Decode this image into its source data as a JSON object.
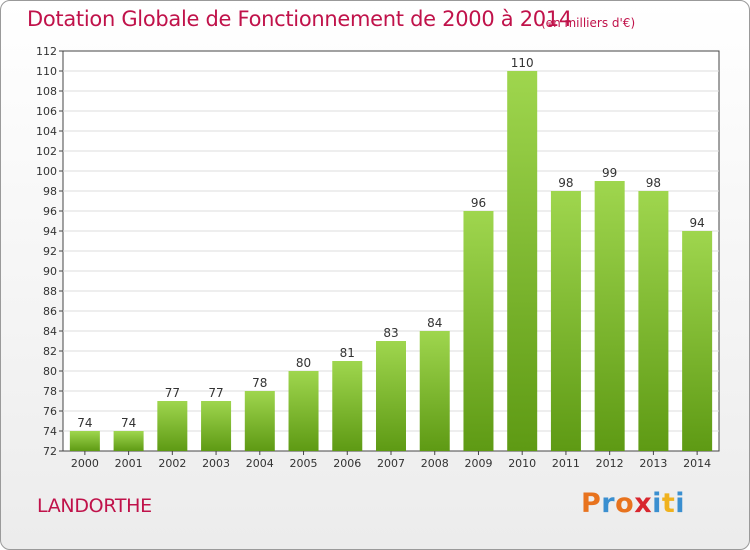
{
  "header": {
    "title": "Dotation Globale de Fonctionnement de 2000 à 2014",
    "unit": "(en milliers d'€)"
  },
  "footer": {
    "commune": "LANDORTHE",
    "logo_letters": [
      "P",
      "r",
      "o",
      "x",
      "i",
      "t",
      "i"
    ]
  },
  "colors": {
    "title": "#c0124a",
    "bar_top": "#9fd64e",
    "bar_bottom": "#5e9a14",
    "logo_letters": [
      "#e8731e",
      "#3a8fd0",
      "#e8731e",
      "#d8262e",
      "#3a8fd0",
      "#f0b21e",
      "#3a8fd0"
    ]
  },
  "chart_data": {
    "type": "bar",
    "title": "Dotation Globale de Fonctionnement de 2000 à 2014",
    "subtitle": "(en milliers d'€)",
    "categories": [
      "2000",
      "2001",
      "2002",
      "2003",
      "2004",
      "2005",
      "2006",
      "2007",
      "2008",
      "2009",
      "2010",
      "2011",
      "2012",
      "2013",
      "2014"
    ],
    "values": [
      74,
      74,
      77,
      77,
      78,
      80,
      81,
      83,
      84,
      96,
      110,
      98,
      99,
      98,
      94
    ],
    "ylim": [
      72,
      112
    ],
    "yticks": [
      72,
      74,
      76,
      78,
      80,
      82,
      84,
      86,
      88,
      90,
      92,
      94,
      96,
      98,
      100,
      102,
      104,
      106,
      108,
      110,
      112
    ],
    "grid": true,
    "legend": "none"
  }
}
